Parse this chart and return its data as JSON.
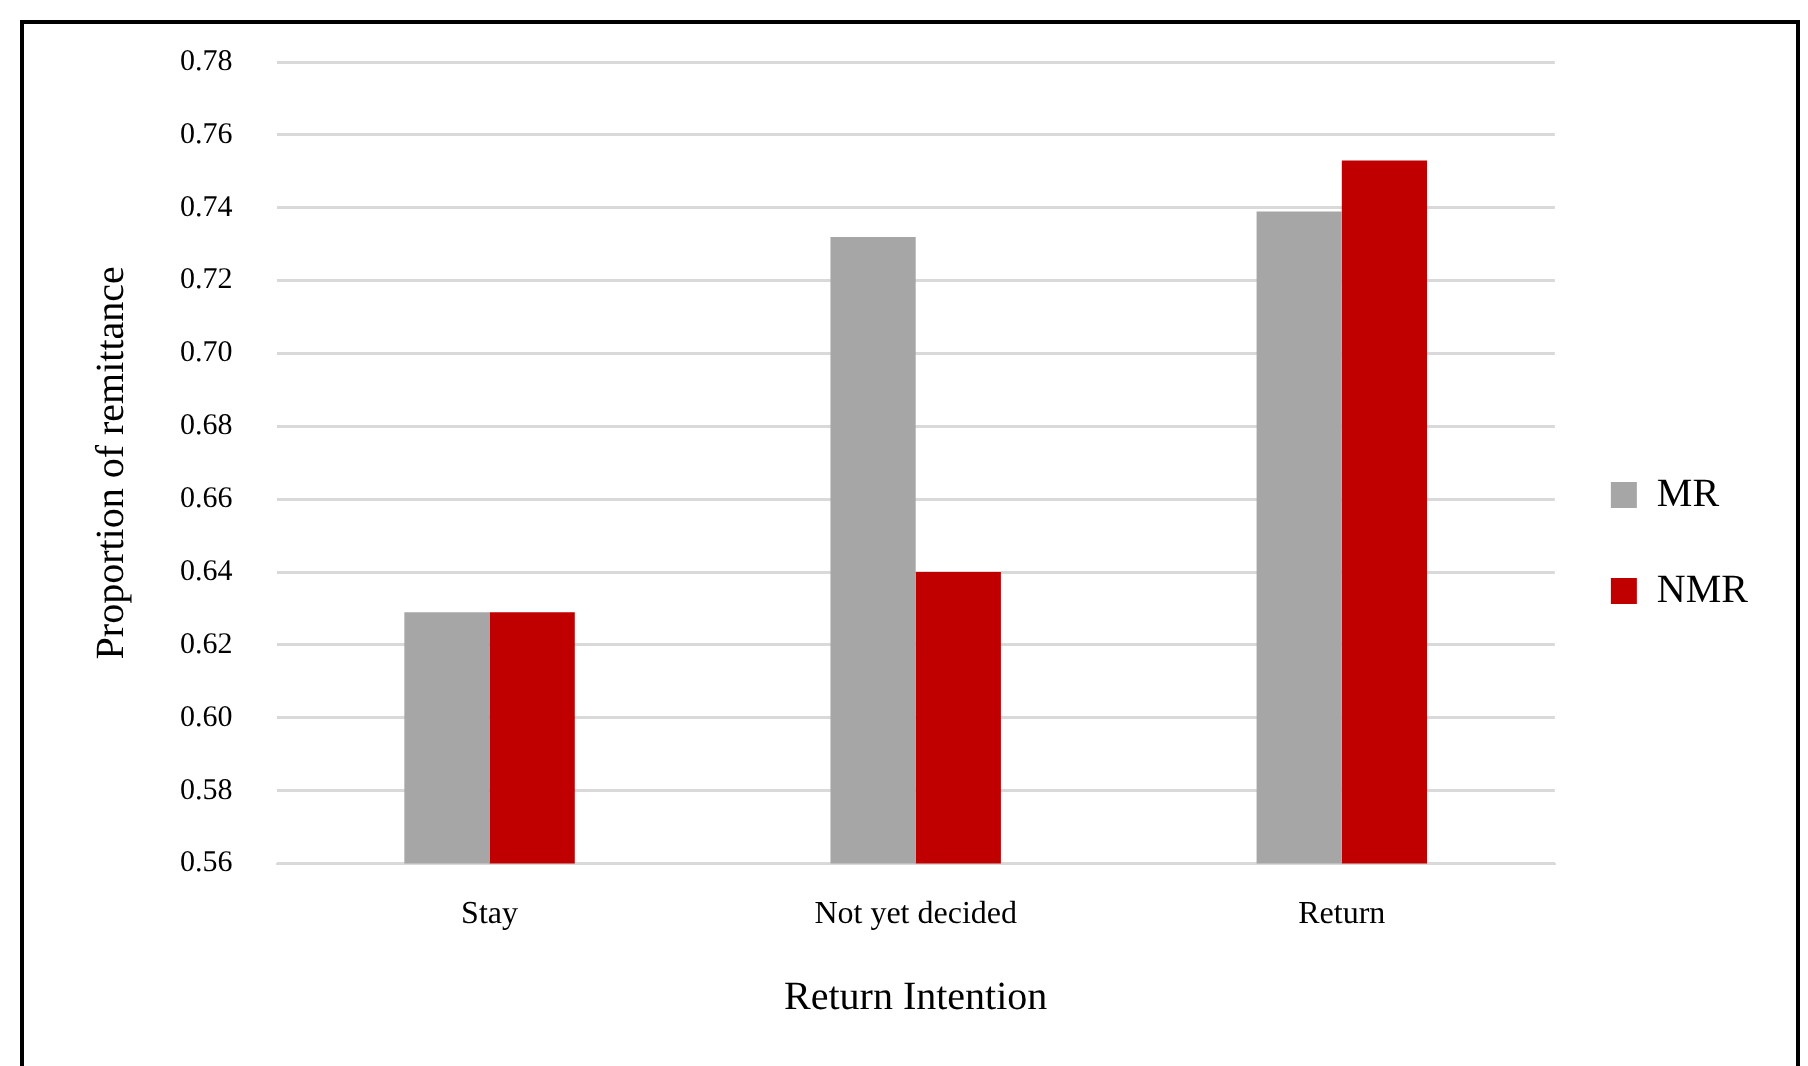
{
  "chart_data": {
    "type": "bar",
    "xlabel": "Return Intention",
    "ylabel": "Proportion of remittance",
    "categories": [
      "Stay",
      "Not yet decided",
      "Return"
    ],
    "series": [
      {
        "name": "MR",
        "color": "#a6a6a6",
        "values": [
          0.629,
          0.732,
          0.739
        ]
      },
      {
        "name": "NMR",
        "color": "#c00000",
        "values": [
          0.629,
          0.64,
          0.753
        ]
      }
    ],
    "ylim": [
      0.56,
      0.78
    ],
    "yticks": [
      {
        "value": 0.56,
        "label": "0.56"
      },
      {
        "value": 0.58,
        "label": "0.58"
      },
      {
        "value": 0.6,
        "label": "0.60"
      },
      {
        "value": 0.62,
        "label": "0.62"
      },
      {
        "value": 0.64,
        "label": "0.64"
      },
      {
        "value": 0.66,
        "label": "0.66"
      },
      {
        "value": 0.68,
        "label": "0.68"
      },
      {
        "value": 0.7,
        "label": "0.70"
      },
      {
        "value": 0.72,
        "label": "0.72"
      },
      {
        "value": 0.74,
        "label": "0.74"
      },
      {
        "value": 0.76,
        "label": "0.76"
      },
      {
        "value": 0.78,
        "label": "0.78"
      }
    ],
    "grid": "y",
    "legend": "right"
  }
}
